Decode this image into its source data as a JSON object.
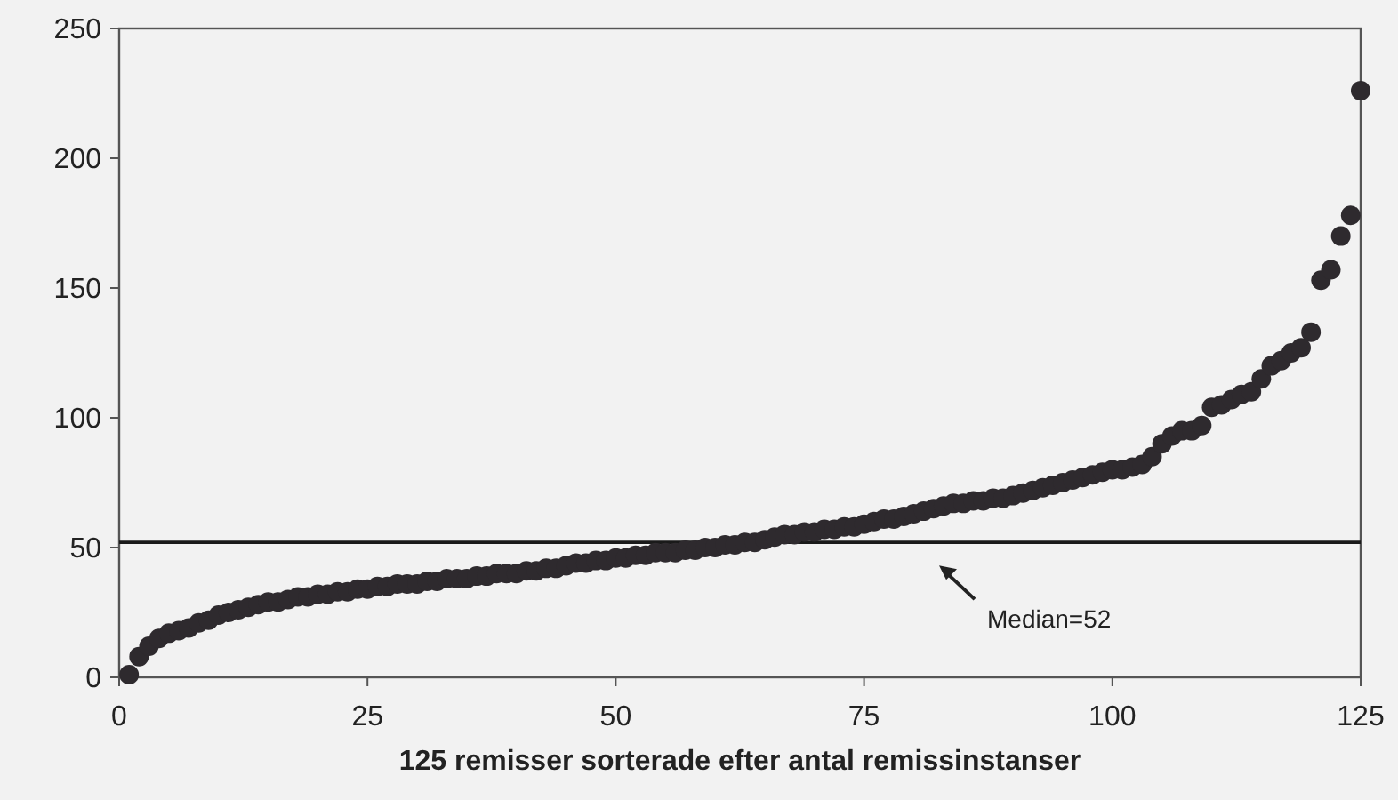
{
  "chart_data": {
    "type": "scatter",
    "xlabel": "125 remisser sorterade efter antal remissinstanser",
    "x": [
      1,
      2,
      3,
      4,
      5,
      6,
      7,
      8,
      9,
      10,
      11,
      12,
      13,
      14,
      15,
      16,
      17,
      18,
      19,
      20,
      21,
      22,
      23,
      24,
      25,
      26,
      27,
      28,
      29,
      30,
      31,
      32,
      33,
      34,
      35,
      36,
      37,
      38,
      39,
      40,
      41,
      42,
      43,
      44,
      45,
      46,
      47,
      48,
      49,
      50,
      51,
      52,
      53,
      54,
      55,
      56,
      57,
      58,
      59,
      60,
      61,
      62,
      63,
      64,
      65,
      66,
      67,
      68,
      69,
      70,
      71,
      72,
      73,
      74,
      75,
      76,
      77,
      78,
      79,
      80,
      81,
      82,
      83,
      84,
      85,
      86,
      87,
      88,
      89,
      90,
      91,
      92,
      93,
      94,
      95,
      96,
      97,
      98,
      99,
      100,
      101,
      102,
      103,
      104,
      105,
      106,
      107,
      108,
      109,
      110,
      111,
      112,
      113,
      114,
      115,
      116,
      117,
      118,
      119,
      120,
      121,
      122,
      123,
      124,
      125
    ],
    "series": [
      {
        "color": "#2e2a2e",
        "values": [
          1,
          8,
          12,
          15,
          17,
          18,
          19,
          21,
          22,
          24,
          25,
          26,
          27,
          28,
          29,
          29,
          30,
          31,
          31,
          32,
          32,
          33,
          33,
          34,
          34,
          35,
          35,
          36,
          36,
          36,
          37,
          37,
          38,
          38,
          38,
          39,
          39,
          40,
          40,
          40,
          41,
          41,
          42,
          42,
          43,
          44,
          44,
          45,
          45,
          46,
          46,
          47,
          47,
          48,
          48,
          48,
          49,
          49,
          50,
          50,
          51,
          51,
          52,
          52,
          53,
          54,
          55,
          55,
          56,
          56,
          57,
          57,
          58,
          58,
          59,
          60,
          61,
          61,
          62,
          63,
          64,
          65,
          66,
          67,
          67,
          68,
          68,
          69,
          69,
          70,
          71,
          72,
          73,
          74,
          75,
          76,
          77,
          78,
          79,
          80,
          80,
          81,
          82,
          85,
          90,
          93,
          95,
          95,
          97,
          104,
          105,
          107,
          109,
          110,
          115,
          120,
          122,
          125,
          127,
          133,
          153,
          157,
          170,
          178,
          226
        ]
      }
    ],
    "xlim": [
      0,
      125
    ],
    "xticks": [
      0,
      25,
      50,
      75,
      100,
      125
    ],
    "ylim": [
      0,
      250
    ],
    "yticks": [
      0,
      50,
      100,
      150,
      200,
      250
    ],
    "marker": "circle",
    "ref_lines": [
      {
        "axis": "y",
        "value": 52,
        "label": "Median=52",
        "color": "#1a1a1a"
      }
    ]
  }
}
